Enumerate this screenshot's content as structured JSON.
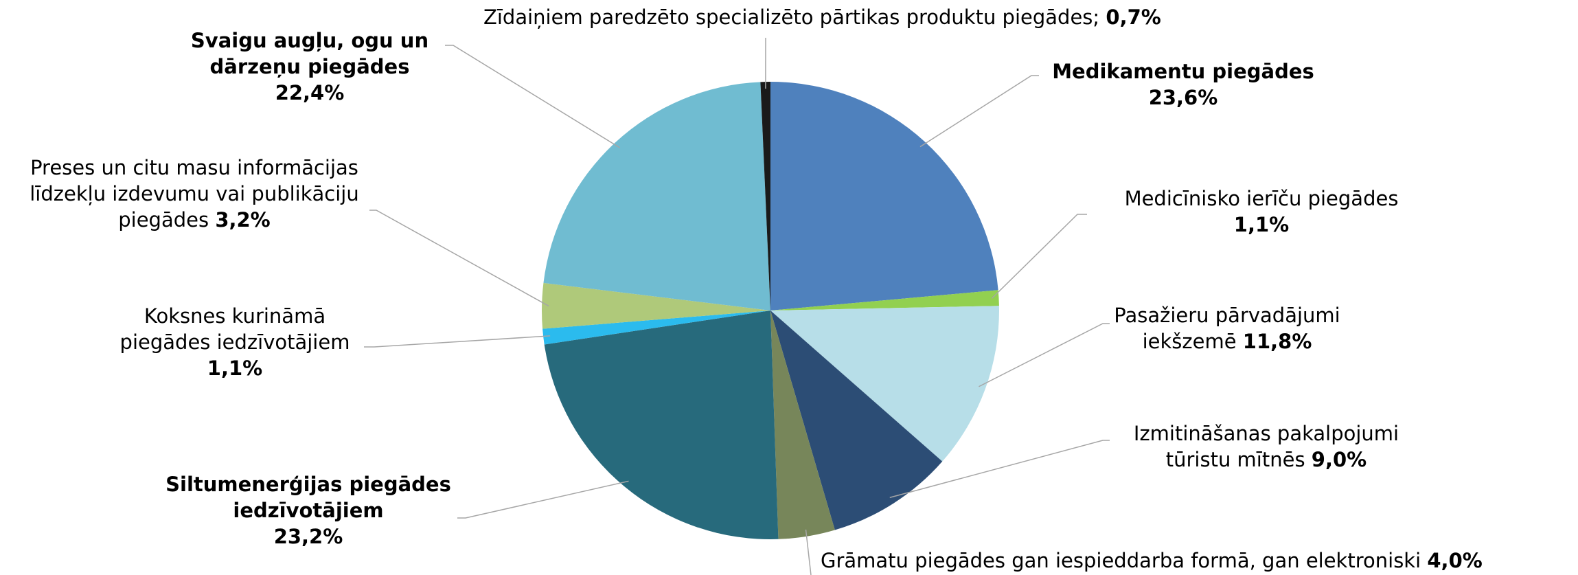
{
  "chart_data": {
    "type": "pie",
    "categories": [
      "Medikamentu piegādes",
      "Medicīnisko ierīču piegādes",
      "Pasažieru pārvadājumi iekšzemē",
      "Izmitināšanas pakalpojumi tūristu mītnēs",
      "Grāmatu piegādes gan iespieddarba formā, gan elektroniski",
      "Siltumenerģijas piegādes iedzīvotājiem",
      "Koksnes kurināmā piegādes iedzīvotājiem",
      "Preses un citu masu informācijas līdzekļu izdevumu vai publikāciju piegādes",
      "Svaigu augļu, ogu un dārzeņu piegādes",
      "Zīdaiņiem paredzēto specializēto pārtikas produktu piegādes;"
    ],
    "values": [
      23.6,
      1.1,
      11.8,
      9.0,
      4.0,
      23.2,
      1.1,
      3.2,
      22.4,
      0.7
    ],
    "value_labels": [
      "23,6%",
      "1,1%",
      "11,8%",
      "9,0%",
      "4,0%",
      "23,2%",
      "1,1%",
      "3,2%",
      "22,4%",
      "0,7%"
    ],
    "colors": [
      "#4f81bd",
      "#92d050",
      "#b7dee8",
      "#2c4d75",
      "#77865a",
      "#276a7c",
      "#2bbbee",
      "#afc97a",
      "#70bcd1",
      "#1a1a1a"
    ]
  }
}
